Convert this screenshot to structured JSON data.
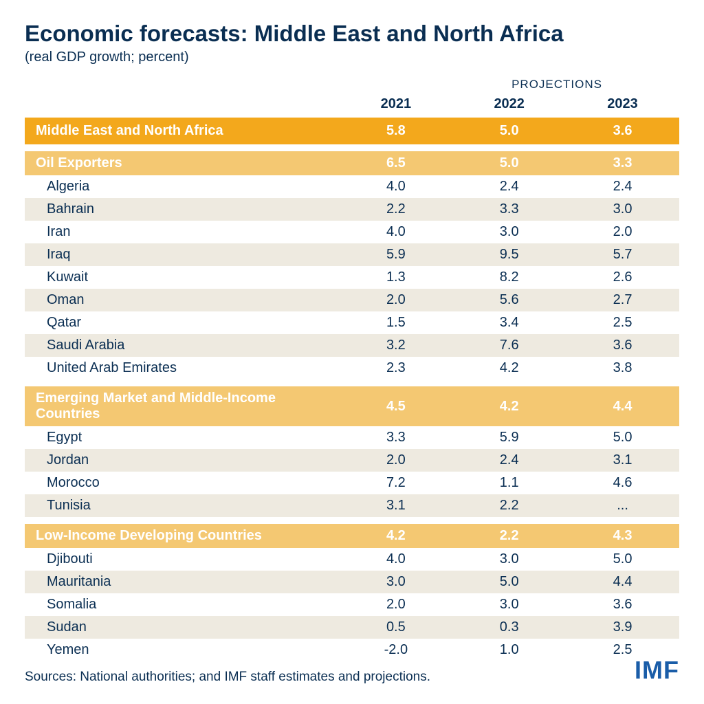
{
  "title": "Economic forecasts: Middle East and North Africa",
  "subtitle": "(real GDP growth; percent)",
  "projections_label": "PROJECTIONS",
  "columns": [
    "",
    "2021",
    "2022",
    "2023"
  ],
  "colors": {
    "main_row_bg": "#f3a81c",
    "group_row_bg": "#f4c872",
    "header_text": "#ffffff",
    "body_text": "#0a2e52",
    "row_even": "#ffffff",
    "row_odd": "#eeeae0",
    "logo": "#1a5da8"
  },
  "main_region": {
    "label": "Middle East and North Africa",
    "values": [
      "5.8",
      "5.0",
      "3.6"
    ]
  },
  "groups": [
    {
      "label": "Oil Exporters",
      "values": [
        "6.5",
        "5.0",
        "3.3"
      ],
      "rows": [
        {
          "label": "Algeria",
          "values": [
            "4.0",
            "2.4",
            "2.4"
          ]
        },
        {
          "label": "Bahrain",
          "values": [
            "2.2",
            "3.3",
            "3.0"
          ]
        },
        {
          "label": "Iran",
          "values": [
            "4.0",
            "3.0",
            "2.0"
          ]
        },
        {
          "label": "Iraq",
          "values": [
            "5.9",
            "9.5",
            "5.7"
          ]
        },
        {
          "label": "Kuwait",
          "values": [
            "1.3",
            "8.2",
            "2.6"
          ]
        },
        {
          "label": "Oman",
          "values": [
            "2.0",
            "5.6",
            "2.7"
          ]
        },
        {
          "label": "Qatar",
          "values": [
            "1.5",
            "3.4",
            "2.5"
          ]
        },
        {
          "label": "Saudi Arabia",
          "values": [
            "3.2",
            "7.6",
            "3.6"
          ]
        },
        {
          "label": "United Arab Emirates",
          "values": [
            "2.3",
            "4.2",
            "3.8"
          ]
        }
      ]
    },
    {
      "label": "Emerging Market and Middle-Income Countries",
      "values": [
        "4.5",
        "4.2",
        "4.4"
      ],
      "rows": [
        {
          "label": "Egypt",
          "values": [
            "3.3",
            "5.9",
            "5.0"
          ]
        },
        {
          "label": "Jordan",
          "values": [
            "2.0",
            "2.4",
            "3.1"
          ]
        },
        {
          "label": "Morocco",
          "values": [
            "7.2",
            "1.1",
            "4.6"
          ]
        },
        {
          "label": "Tunisia",
          "values": [
            "3.1",
            "2.2",
            "..."
          ]
        }
      ]
    },
    {
      "label": "Low-Income Developing Countries",
      "values": [
        "4.2",
        "2.2",
        "4.3"
      ],
      "rows": [
        {
          "label": "Djibouti",
          "values": [
            "4.0",
            "3.0",
            "5.0"
          ]
        },
        {
          "label": "Mauritania",
          "values": [
            "3.0",
            "5.0",
            "4.4"
          ]
        },
        {
          "label": "Somalia",
          "values": [
            "2.0",
            "3.0",
            "3.6"
          ]
        },
        {
          "label": "Sudan",
          "values": [
            "0.5",
            "0.3",
            "3.9"
          ]
        },
        {
          "label": "Yemen",
          "values": [
            "-2.0",
            "1.0",
            "2.5"
          ]
        }
      ]
    }
  ],
  "source": "Sources: National authorities; and IMF staff estimates and projections.",
  "logo": "IMF"
}
